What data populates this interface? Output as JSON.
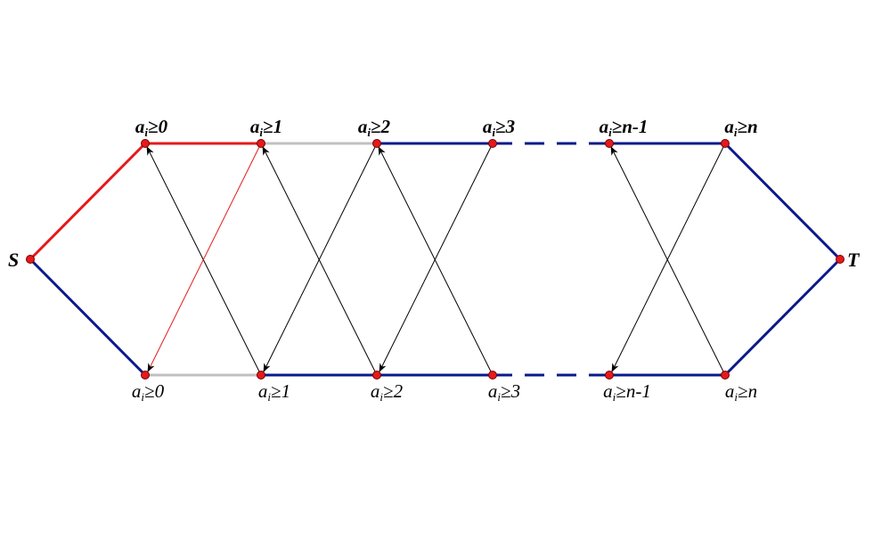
{
  "nodes": {
    "source": "S",
    "sink": "T"
  },
  "top_labels": [
    {
      "var": "a",
      "sub": "i",
      "rel": "≥0"
    },
    {
      "var": "a",
      "sub": "i",
      "rel": "≥1"
    },
    {
      "var": "a",
      "sub": "i",
      "rel": "≥2"
    },
    {
      "var": "a",
      "sub": "i",
      "rel": "≥3"
    },
    {
      "var": "a",
      "sub": "i",
      "rel": "≥n-1"
    },
    {
      "var": "a",
      "sub": "i",
      "rel": "≥n"
    }
  ],
  "bottom_labels": [
    {
      "var": "a",
      "sub": "i",
      "rel": "≥0"
    },
    {
      "var": "a",
      "sub": "i",
      "rel": "≥1"
    },
    {
      "var": "a",
      "sub": "i",
      "rel": "≥2"
    },
    {
      "var": "a",
      "sub": "i",
      "rel": "≥3"
    },
    {
      "var": "a",
      "sub": "i",
      "rel": "≥n-1"
    },
    {
      "var": "a",
      "sub": "i",
      "rel": "≥n"
    }
  ],
  "colors": {
    "red": "#e41a1c",
    "blue": "#0b1a8a",
    "gray": "#c0c0c0",
    "arrow": "#000000",
    "node_fill": "#e41a1c",
    "node_stroke": "#7a0000"
  }
}
